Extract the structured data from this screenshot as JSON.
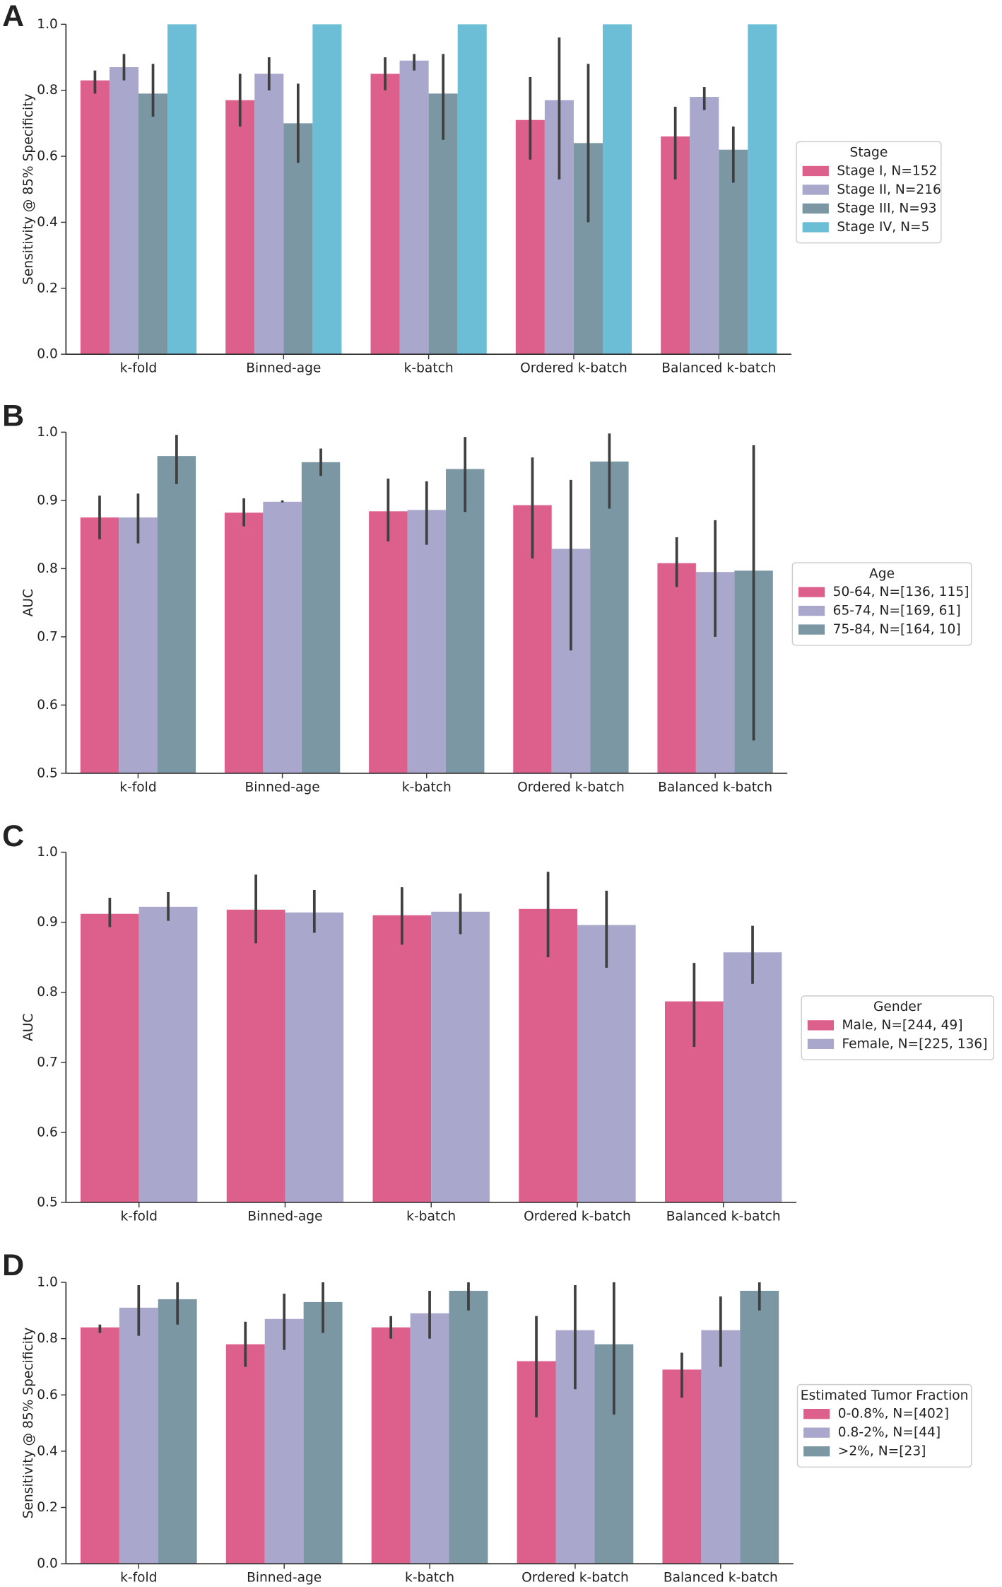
{
  "chart_data": [
    {
      "type": "bar",
      "panel": "A",
      "ylabel": "Sensitivity @ 85% Specificity",
      "legend_title": "Stage",
      "legend": "right",
      "categories": [
        "k-fold",
        "Binned-age",
        "k-batch",
        "Ordered k-batch",
        "Balanced k-batch"
      ],
      "ylim": [
        0,
        1
      ],
      "yticks": [
        {
          "value": 0,
          "label": "0.0"
        },
        0.2,
        0.4,
        0.6,
        0.8,
        {
          "value": 1,
          "label": "1.0"
        }
      ],
      "series": [
        {
          "name": "Stage I, N=152",
          "color": "#dc5f8c",
          "values": [
            0.83,
            0.77,
            0.85,
            0.71,
            0.66
          ],
          "ci": [
            [
              0.79,
              0.86
            ],
            [
              0.69,
              0.85
            ],
            [
              0.8,
              0.9
            ],
            [
              0.59,
              0.84
            ],
            [
              0.53,
              0.75
            ]
          ]
        },
        {
          "name": "Stage II, N=216",
          "color": "#a9a7cb",
          "values": [
            0.87,
            0.85,
            0.89,
            0.77,
            0.78
          ],
          "ci": [
            [
              0.83,
              0.91
            ],
            [
              0.8,
              0.9
            ],
            [
              0.86,
              0.91
            ],
            [
              0.53,
              0.96
            ],
            [
              0.74,
              0.81
            ]
          ]
        },
        {
          "name": "Stage III, N=93",
          "color": "#7b97a4",
          "values": [
            0.79,
            0.7,
            0.79,
            0.64,
            0.62
          ],
          "ci": [
            [
              0.72,
              0.88
            ],
            [
              0.58,
              0.82
            ],
            [
              0.65,
              0.91
            ],
            [
              0.4,
              0.88
            ],
            [
              0.52,
              0.69
            ]
          ]
        },
        {
          "name": "Stage IV, N=5",
          "color": "#6cbed6",
          "values": [
            1,
            1,
            1,
            1,
            1
          ]
        }
      ]
    },
    {
      "type": "bar",
      "panel": "B",
      "ylabel": "AUC",
      "legend_title": "Age",
      "legend": "right",
      "categories": [
        "k-fold",
        "Binned-age",
        "k-batch",
        "Ordered k-batch",
        "Balanced k-batch"
      ],
      "ylim": [
        0.5,
        1
      ],
      "yticks": [
        0.5,
        0.6,
        0.7,
        0.8,
        0.9,
        {
          "value": 1,
          "label": "1.0"
        }
      ],
      "series": [
        {
          "name": "50-64, N=[136, 115]",
          "color": "#dc5f8c",
          "values": [
            0.875,
            0.882,
            0.884,
            0.893,
            0.808
          ],
          "ci": [
            [
              0.843,
              0.907
            ],
            [
              0.862,
              0.903
            ],
            [
              0.84,
              0.932
            ],
            [
              0.815,
              0.963
            ],
            [
              0.773,
              0.846
            ]
          ]
        },
        {
          "name": "65-74, N=[169, 61]",
          "color": "#a9a7cb",
          "values": [
            0.875,
            0.898,
            0.886,
            0.829,
            0.795
          ],
          "ci": [
            [
              0.837,
              0.91
            ],
            [
              0.897,
              0.9
            ],
            [
              0.835,
              0.928
            ],
            [
              0.68,
              0.93
            ],
            [
              0.7,
              0.871
            ]
          ]
        },
        {
          "name": "75-84, N=[164, 10]",
          "color": "#7b97a4",
          "values": [
            0.965,
            0.956,
            0.946,
            0.957,
            0.797
          ],
          "ci": [
            [
              0.924,
              0.996
            ],
            [
              0.936,
              0.976
            ],
            [
              0.883,
              0.993
            ],
            [
              0.888,
              0.998
            ],
            [
              0.548,
              0.981
            ]
          ]
        }
      ]
    },
    {
      "type": "bar",
      "panel": "C",
      "ylabel": "AUC",
      "legend_title": "Gender",
      "legend": "right",
      "categories": [
        "k-fold",
        "Binned-age",
        "k-batch",
        "Ordered k-batch",
        "Balanced k-batch"
      ],
      "ylim": [
        0.5,
        1
      ],
      "yticks": [
        0.5,
        0.6,
        0.7,
        0.8,
        0.9,
        {
          "value": 1,
          "label": "1.0"
        }
      ],
      "series": [
        {
          "name": "Male, N=[244, 49]",
          "color": "#dc5f8c",
          "values": [
            0.912,
            0.918,
            0.91,
            0.919,
            0.787
          ],
          "ci": [
            [
              0.893,
              0.935
            ],
            [
              0.87,
              0.968
            ],
            [
              0.868,
              0.95
            ],
            [
              0.85,
              0.972
            ],
            [
              0.722,
              0.842
            ]
          ]
        },
        {
          "name": "Female, N=[225, 136]",
          "color": "#a9a7cb",
          "values": [
            0.922,
            0.914,
            0.915,
            0.896,
            0.857
          ],
          "ci": [
            [
              0.902,
              0.943
            ],
            [
              0.885,
              0.946
            ],
            [
              0.883,
              0.941
            ],
            [
              0.835,
              0.945
            ],
            [
              0.812,
              0.895
            ]
          ]
        }
      ]
    },
    {
      "type": "bar",
      "panel": "D",
      "ylabel": "Sensitivity @ 85% Specificity",
      "legend_title": "Estimated Tumor Fraction",
      "legend": "right",
      "categories": [
        "k-fold",
        "Binned-age",
        "k-batch",
        "Ordered k-batch",
        "Balanced k-batch"
      ],
      "ylim": [
        0,
        1
      ],
      "yticks": [
        {
          "value": 0,
          "label": "0.0"
        },
        0.2,
        0.4,
        0.6,
        0.8,
        {
          "value": 1,
          "label": "1.0"
        }
      ],
      "series": [
        {
          "name": "0-0.8%, N=[402]",
          "color": "#dc5f8c",
          "values": [
            0.84,
            0.78,
            0.84,
            0.72,
            0.69
          ],
          "ci": [
            [
              0.82,
              0.85
            ],
            [
              0.7,
              0.86
            ],
            [
              0.8,
              0.88
            ],
            [
              0.52,
              0.88
            ],
            [
              0.59,
              0.75
            ]
          ]
        },
        {
          "name": "0.8-2%, N=[44]",
          "color": "#a9a7cb",
          "values": [
            0.91,
            0.87,
            0.89,
            0.83,
            0.83
          ],
          "ci": [
            [
              0.81,
              0.99
            ],
            [
              0.76,
              0.96
            ],
            [
              0.8,
              0.97
            ],
            [
              0.62,
              0.99
            ],
            [
              0.7,
              0.95
            ]
          ]
        },
        {
          "name": ">2%, N=[23]",
          "color": "#7b97a4",
          "values": [
            0.94,
            0.93,
            0.97,
            0.78,
            0.97
          ],
          "ci": [
            [
              0.85,
              1
            ],
            [
              0.82,
              1
            ],
            [
              0.9,
              1
            ],
            [
              0.53,
              1
            ],
            [
              0.9,
              1
            ]
          ]
        }
      ]
    }
  ]
}
